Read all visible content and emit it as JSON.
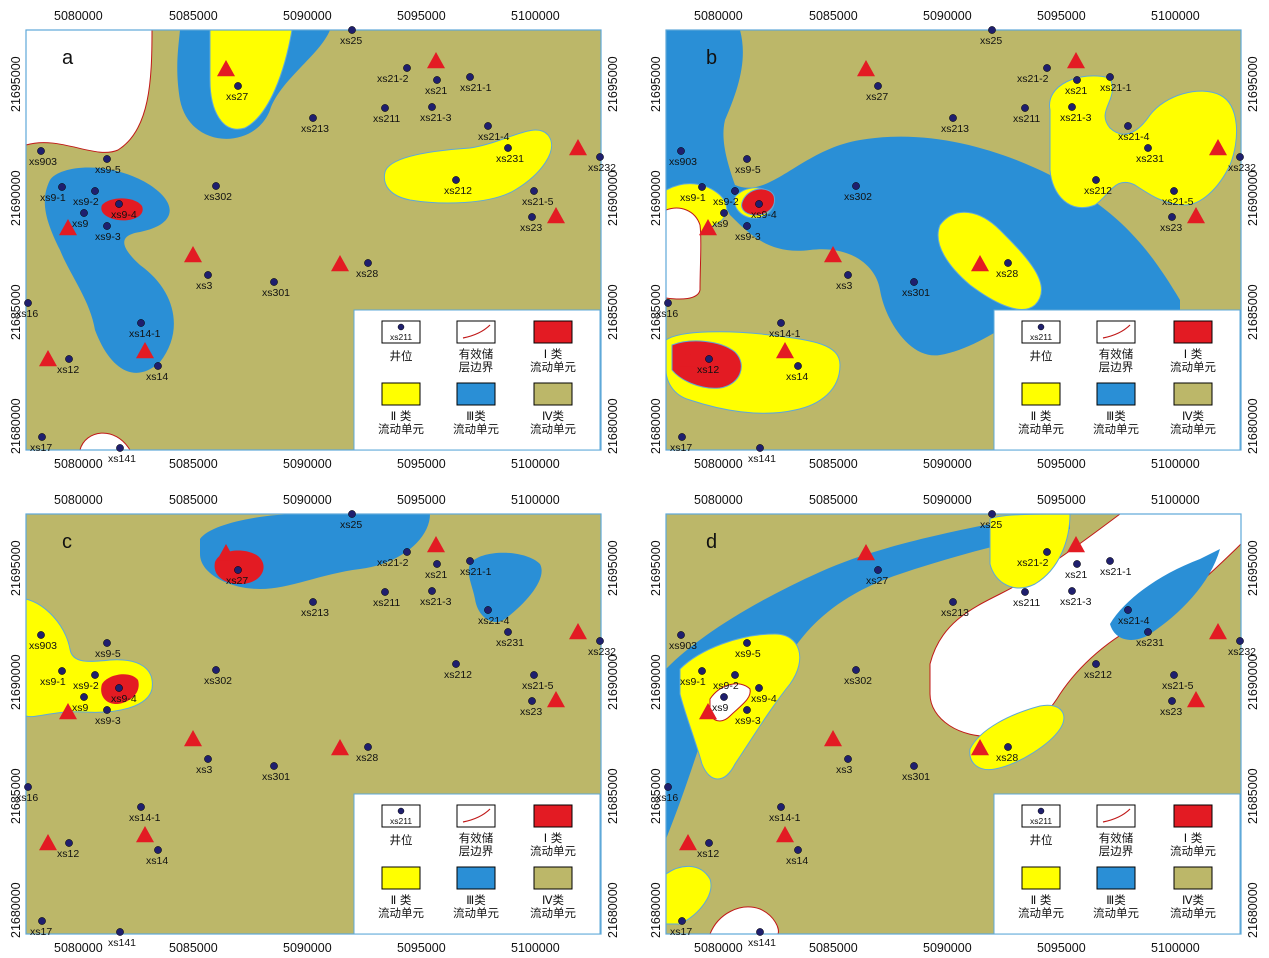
{
  "colors": {
    "class1": "#e31b23",
    "class2": "#ffff00",
    "class3": "#2a8fd6",
    "class4": "#bcb769",
    "boundary": "#c01818",
    "frame": "#5ea8d8",
    "well": "#1f1f6e",
    "triangle": "#e31b23",
    "nonreservoir": "#ffffff"
  },
  "axes": {
    "x_ticks": [
      "5080000",
      "5085000",
      "5090000",
      "5095000",
      "5100000"
    ],
    "y_ticks": [
      "21695000",
      "21690000",
      "21685000",
      "21680000"
    ]
  },
  "panels": [
    {
      "label": "a"
    },
    {
      "label": "b"
    },
    {
      "label": "c"
    },
    {
      "label": "d"
    }
  ],
  "wells": [
    {
      "name": "xs25",
      "lx": 0
    },
    {
      "name": "xs21-2",
      "lx": -18
    },
    {
      "name": "xs21",
      "lx": 0
    },
    {
      "name": "xs21-1",
      "lx": 2
    },
    {
      "name": "xs27",
      "lx": 0
    },
    {
      "name": "xs211",
      "lx": 0
    },
    {
      "name": "xs21-3",
      "lx": 0
    },
    {
      "name": "xs213",
      "lx": 0
    },
    {
      "name": "xs21-4",
      "lx": 2
    },
    {
      "name": "xs231",
      "lx": 0
    },
    {
      "name": "xs232",
      "lx": 0
    },
    {
      "name": "xs903",
      "lx": 0
    },
    {
      "name": "xs9-5",
      "lx": 0
    },
    {
      "name": "xs302",
      "lx": 0
    },
    {
      "name": "xs212",
      "lx": 0
    },
    {
      "name": "xs9-1",
      "lx": -10
    },
    {
      "name": "xs9-2",
      "lx": -10
    },
    {
      "name": "xs9-4",
      "lx": 4
    },
    {
      "name": "xs9",
      "lx": 0
    },
    {
      "name": "xs9-3",
      "lx": 0
    },
    {
      "name": "xs21-5",
      "lx": 0
    },
    {
      "name": "xs23",
      "lx": 0
    },
    {
      "name": "xs28",
      "lx": 0
    },
    {
      "name": "xs3",
      "lx": 0
    },
    {
      "name": "xs301",
      "lx": 0
    },
    {
      "name": "xs16",
      "lx": 0
    },
    {
      "name": "xs14-1",
      "lx": 0
    },
    {
      "name": "xs12",
      "lx": 0
    },
    {
      "name": "xs14",
      "lx": 0
    },
    {
      "name": "xs17",
      "lx": 0
    },
    {
      "name": "xs141",
      "lx": 0
    }
  ],
  "legend": {
    "well_sample": "xs211",
    "well": "井位",
    "boundary_line1": "有效储",
    "boundary_line2": "层边界",
    "class1_line1": "Ⅰ 类",
    "class1_line2": "流动单元",
    "class2_line1": "Ⅱ 类",
    "class2_line2": "流动单元",
    "class3_line1": "Ⅲ类",
    "class3_line2": "流动单元",
    "class4_line1": "Ⅳ类",
    "class4_line2": "流动单元"
  }
}
